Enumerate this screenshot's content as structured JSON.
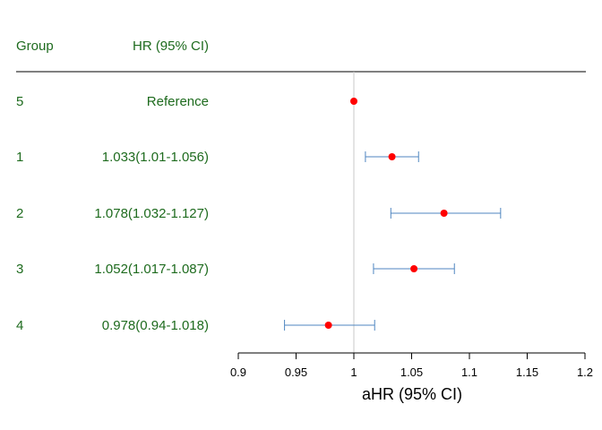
{
  "chart_data": {
    "type": "forest",
    "header": {
      "group": "Group",
      "hr": "HR (95% CI)"
    },
    "xlabel": "aHR (95% CI)",
    "xlim": [
      0.9,
      1.2
    ],
    "xticks": [
      0.9,
      0.95,
      1,
      1.05,
      1.1,
      1.15,
      1.2
    ],
    "tick_labels": [
      "0.9",
      "0.95",
      "1",
      "1.05",
      "1.1",
      "1.15",
      "1.2"
    ],
    "reference_line": 1,
    "rows": [
      {
        "group": "5",
        "label": "Reference",
        "est": 1.0,
        "lo": null,
        "hi": null
      },
      {
        "group": "1",
        "label": "1.033(1.01-1.056)",
        "est": 1.033,
        "lo": 1.01,
        "hi": 1.056
      },
      {
        "group": "2",
        "label": "1.078(1.032-1.127)",
        "est": 1.078,
        "lo": 1.032,
        "hi": 1.127
      },
      {
        "group": "3",
        "label": "1.052(1.017-1.087)",
        "est": 1.052,
        "lo": 1.017,
        "hi": 1.087
      },
      {
        "group": "4",
        "label": "0.978(0.94-1.018)",
        "est": 0.978,
        "lo": 0.94,
        "hi": 1.018
      }
    ],
    "colors": {
      "text": "#1e6b1e",
      "point": "#ff0000",
      "ci": "#4f86c0",
      "refline": "#c8c8c8"
    }
  }
}
